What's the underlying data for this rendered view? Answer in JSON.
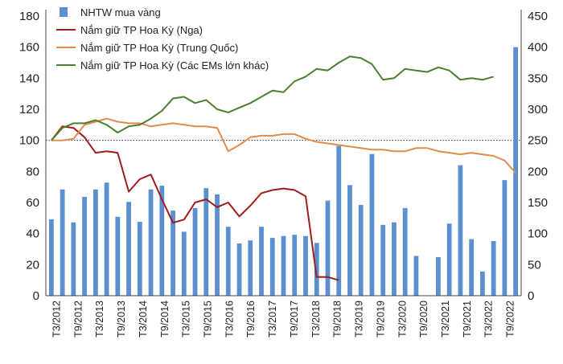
{
  "chart_data": {
    "type": "bar+line",
    "left_axis": {
      "ylim": [
        0,
        180
      ],
      "ticks": [
        "0",
        "20",
        "40",
        "60",
        "80",
        "100",
        "120",
        "140",
        "160",
        "180"
      ]
    },
    "right_axis": {
      "ylim": [
        0,
        450
      ],
      "ticks": [
        "0",
        "50",
        "100",
        "150",
        "200",
        "250",
        "300",
        "350",
        "400",
        "450"
      ]
    },
    "reference_line": 100,
    "x_tick_labels": [
      "T3/2012",
      "T9/2012",
      "T3/2013",
      "T9/2013",
      "T3/2014",
      "T9/2014",
      "T3/2015",
      "T9/2015",
      "T3/2016",
      "T9/2016",
      "T3/2017",
      "T9/2017",
      "T3/2018",
      "T9/2018",
      "T3/2019",
      "T9/2019",
      "T3/2020",
      "T9/2020",
      "T3/2021",
      "T9/2021",
      "T3/2022",
      "T9/2022"
    ],
    "legend_position": "top-left",
    "bar_series": {
      "name": "NHTW mua vàng",
      "color": "#5b8fd0",
      "axis": "right",
      "values": [
        123,
        171,
        118,
        159,
        171,
        182,
        127,
        151,
        119,
        171,
        177,
        137,
        103,
        141,
        173,
        163,
        111,
        84,
        89,
        111,
        93,
        96,
        98,
        96,
        85,
        153,
        241,
        178,
        146,
        228,
        114,
        118,
        141,
        64,
        0,
        62,
        116,
        210,
        91,
        39,
        88,
        186,
        400
      ]
    },
    "line_series": [
      {
        "name": "Nắm giữ TP Hoa Kỳ (Nga)",
        "color": "#a01c1c",
        "axis": "left",
        "points": [
          [
            0,
            100
          ],
          [
            1,
            109
          ],
          [
            2,
            108
          ],
          [
            3,
            102
          ],
          [
            4,
            92
          ],
          [
            5,
            93
          ],
          [
            6,
            92
          ],
          [
            7,
            67
          ],
          [
            8,
            75
          ],
          [
            9,
            78
          ],
          [
            10,
            62
          ],
          [
            11,
            47
          ],
          [
            12,
            49
          ],
          [
            13,
            60
          ],
          [
            14,
            62
          ],
          [
            15,
            57
          ],
          [
            16,
            60
          ],
          [
            17,
            51
          ],
          [
            18,
            58
          ],
          [
            19,
            66
          ],
          [
            20,
            68
          ],
          [
            21,
            69
          ],
          [
            22,
            68
          ],
          [
            23,
            64
          ],
          [
            24,
            12
          ],
          [
            25,
            12
          ],
          [
            26,
            10
          ]
        ]
      },
      {
        "name": "Nắm giữ TP Hoa Kỳ (Trung Quốc)",
        "color": "#e08c4c",
        "axis": "left",
        "points": [
          [
            0,
            100
          ],
          [
            1,
            100
          ],
          [
            2,
            101
          ],
          [
            3,
            110
          ],
          [
            4,
            112
          ],
          [
            5,
            114
          ],
          [
            6,
            112
          ],
          [
            7,
            111
          ],
          [
            8,
            111
          ],
          [
            9,
            109
          ],
          [
            10,
            110
          ],
          [
            11,
            111
          ],
          [
            12,
            110
          ],
          [
            13,
            109
          ],
          [
            14,
            109
          ],
          [
            15,
            108
          ],
          [
            16,
            93
          ],
          [
            17,
            97
          ],
          [
            18,
            102
          ],
          [
            19,
            103
          ],
          [
            20,
            103
          ],
          [
            21,
            104
          ],
          [
            22,
            104
          ],
          [
            23,
            101
          ],
          [
            24,
            99
          ],
          [
            25,
            98
          ],
          [
            26,
            97
          ],
          [
            27,
            96
          ],
          [
            28,
            95
          ],
          [
            29,
            94
          ],
          [
            30,
            94
          ],
          [
            31,
            93
          ],
          [
            32,
            93
          ],
          [
            33,
            95
          ],
          [
            34,
            95
          ],
          [
            35,
            93
          ],
          [
            36,
            92
          ],
          [
            37,
            91
          ],
          [
            38,
            92
          ],
          [
            39,
            91
          ],
          [
            40,
            90
          ],
          [
            41,
            87
          ],
          [
            42,
            79
          ]
        ]
      },
      {
        "name": "Nắm giữ TP Hoa Kỳ (Các EMs lớn khác)",
        "color": "#4a8030",
        "axis": "left",
        "points": [
          [
            0,
            100
          ],
          [
            1,
            108
          ],
          [
            2,
            111
          ],
          [
            3,
            111
          ],
          [
            4,
            113
          ],
          [
            5,
            110
          ],
          [
            6,
            105
          ],
          [
            7,
            109
          ],
          [
            8,
            110
          ],
          [
            9,
            114
          ],
          [
            10,
            119
          ],
          [
            11,
            127
          ],
          [
            12,
            128
          ],
          [
            13,
            124
          ],
          [
            14,
            126
          ],
          [
            15,
            120
          ],
          [
            16,
            118
          ],
          [
            17,
            121
          ],
          [
            18,
            124
          ],
          [
            19,
            128
          ],
          [
            20,
            132
          ],
          [
            21,
            131
          ],
          [
            22,
            138
          ],
          [
            23,
            141
          ],
          [
            24,
            146
          ],
          [
            25,
            145
          ],
          [
            26,
            150
          ],
          [
            27,
            154
          ],
          [
            28,
            153
          ],
          [
            29,
            149
          ],
          [
            30,
            139
          ],
          [
            31,
            140
          ],
          [
            32,
            146
          ],
          [
            33,
            145
          ],
          [
            34,
            144
          ],
          [
            35,
            147
          ],
          [
            36,
            145
          ],
          [
            37,
            139
          ],
          [
            38,
            140
          ],
          [
            39,
            139
          ],
          [
            40,
            141
          ]
        ]
      }
    ]
  }
}
